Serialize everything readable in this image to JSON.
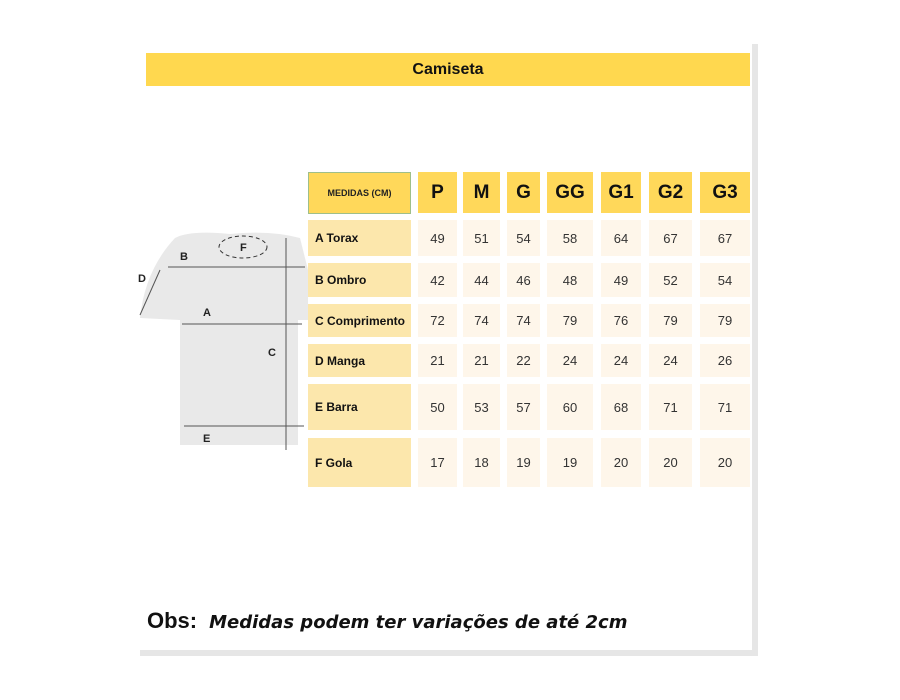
{
  "title": "Camiseta",
  "table": {
    "header_label": "MEDIDAS (CM)",
    "sizes": [
      "P",
      "M",
      "G",
      "GG",
      "G1",
      "G2",
      "G3"
    ],
    "rows": [
      {
        "label": "A Torax",
        "values": [
          "49",
          "51",
          "54",
          "58",
          "64",
          "67",
          "67"
        ]
      },
      {
        "label": "B Ombro",
        "values": [
          "42",
          "44",
          "46",
          "48",
          "49",
          "52",
          "54"
        ]
      },
      {
        "label": "C Comprimento",
        "values": [
          "72",
          "74",
          "74",
          "79",
          "76",
          "79",
          "79"
        ]
      },
      {
        "label": "D Manga",
        "values": [
          "21",
          "21",
          "22",
          "24",
          "24",
          "24",
          "26"
        ]
      },
      {
        "label": "E Barra",
        "values": [
          "50",
          "53",
          "57",
          "60",
          "68",
          "71",
          "71"
        ]
      },
      {
        "label": "F Gola",
        "values": [
          "17",
          "18",
          "19",
          "19",
          "20",
          "20",
          "20"
        ]
      }
    ]
  },
  "diagram": {
    "labels": [
      "A",
      "B",
      "C",
      "D",
      "E",
      "F"
    ]
  },
  "obs": {
    "label": "Obs:",
    "text": "Medidas podem ter variações de até 2cm"
  },
  "colors": {
    "header": "#FFD84F",
    "row_label": "#FCE7AC",
    "value": "#FEF6EA"
  }
}
